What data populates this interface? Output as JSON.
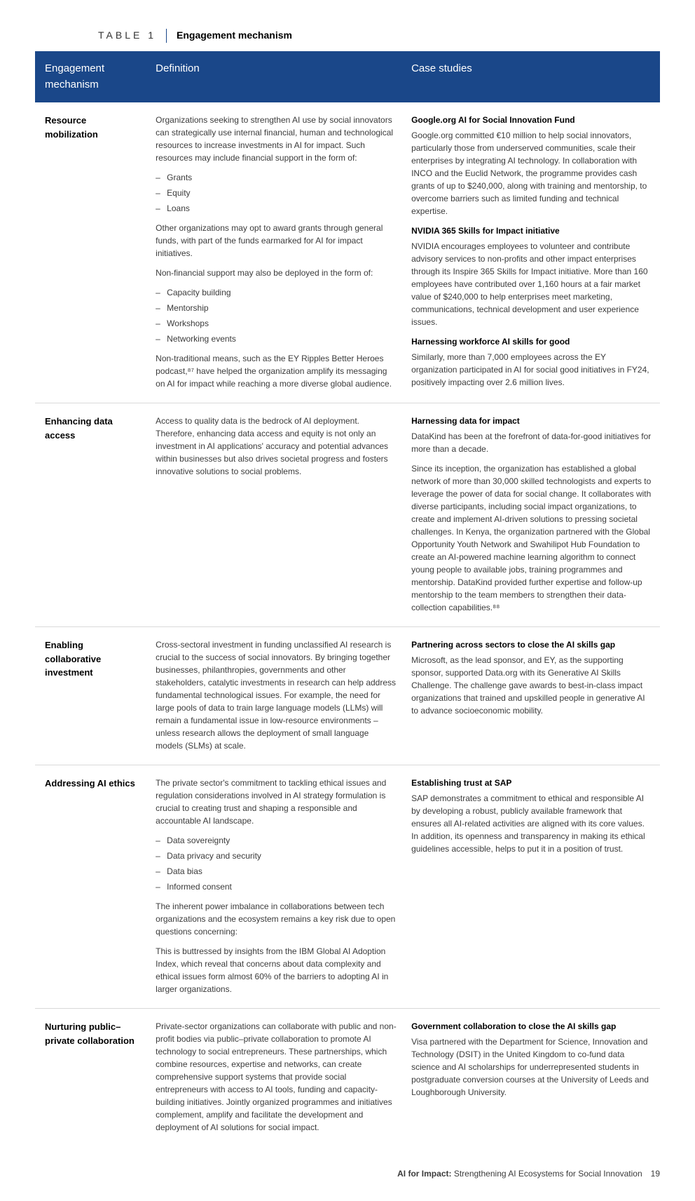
{
  "caption": {
    "num": "TABLE 1",
    "title": "Engagement mechanism"
  },
  "headers": {
    "c1": "Engagement mechanism",
    "c2": "Definition",
    "c3": "Case studies"
  },
  "rows": [
    {
      "mech": "Resource mobilization",
      "def_p1": "Organizations seeking to strengthen AI use by social innovators can strategically use internal financial, human and technological resources to increase investments in AI for impact. Such resources may include financial support in the form of:",
      "def_list1": [
        "Grants",
        "Equity",
        "Loans"
      ],
      "def_p2": "Other organizations may opt to award grants through general funds, with part of the funds earmarked for AI for impact initiatives.",
      "def_p3": "Non-financial support may also be deployed in the form of:",
      "def_list2": [
        "Capacity building",
        "Mentorship",
        "Workshops",
        "Networking events"
      ],
      "def_p4": "Non-traditional means, such as the EY Ripples Better Heroes podcast,⁸⁷ have helped the organization amplify its messaging on AI for impact while reaching a more diverse global audience.",
      "cs": [
        {
          "title": "Google.org AI for Social Innovation Fund",
          "body": "Google.org committed €10 million to help social innovators, particularly those from underserved communities, scale their enterprises by integrating AI technology. In collaboration with INCO and the Euclid Network, the programme provides cash grants of up to $240,000, along with training and mentorship, to overcome barriers such as limited funding and technical expertise."
        },
        {
          "title": "NVIDIA 365 Skills for Impact initiative",
          "body": "NVIDIA encourages employees to volunteer and contribute advisory services to non-profits and other impact enterprises through its Inspire 365 Skills for Impact initiative. More than 160 employees have contributed over 1,160 hours at a fair market value of $240,000 to help enterprises meet marketing, communications, technical development and user experience issues."
        },
        {
          "title": "Harnessing workforce AI skills for good",
          "body": "Similarly, more than 7,000 employees across the EY organization participated in AI for social good initiatives in FY24, positively impacting over 2.6 million lives."
        }
      ]
    },
    {
      "mech": "Enhancing data access",
      "def_p1": "Access to quality data is the bedrock of AI deployment. Therefore, enhancing data access and equity is not only an investment in AI applications' accuracy and potential advances within businesses but also drives societal progress and fosters innovative solutions to social problems.",
      "cs": [
        {
          "title": "Harnessing data for impact",
          "body": "DataKind has been at the forefront of data-for-good initiatives for more than a decade."
        },
        {
          "title": "",
          "body": "Since its inception, the organization has established a global network of more than 30,000 skilled technologists and experts to leverage the power of data for social change. It collaborates with diverse participants, including social impact organizations, to create and implement AI-driven solutions to pressing societal challenges. In Kenya, the organization partnered with the Global Opportunity Youth Network and Swahilipot Hub Foundation to create an AI-powered machine learning algorithm to connect young people to available jobs, training programmes and mentorship. DataKind provided further expertise and follow-up mentorship to the team members to strengthen their data-collection capabilities.⁸⁸"
        }
      ]
    },
    {
      "mech": "Enabling collaborative investment",
      "def_p1": "Cross-sectoral investment in funding unclassified AI research is crucial to the success of social innovators. By bringing together businesses, philanthropies, governments and other stakeholders, catalytic investments in research can help address fundamental technological issues. For example, the need for large pools of data to train large language models (LLMs) will remain a fundamental issue in low-resource environments – unless research allows the deployment of small language models (SLMs) at scale.",
      "cs": [
        {
          "title": "Partnering across sectors to close the AI skills gap",
          "body": "Microsoft, as the lead sponsor, and EY, as the supporting sponsor, supported Data.org with its Generative AI Skills Challenge. The challenge gave awards to best-in-class impact organizations that trained and upskilled people in generative AI to advance socioeconomic mobility."
        }
      ]
    },
    {
      "mech": "Addressing AI ethics",
      "def_p1": "The private sector's commitment to tackling ethical issues and regulation considerations involved in AI strategy formulation is crucial to creating trust and shaping a responsible and accountable AI landscape.",
      "def_p2": "The inherent power imbalance in collaborations between tech organizations and the ecosystem remains a key risk due to open questions concerning:",
      "def_list1": [
        "Data sovereignty",
        "Data privacy and security",
        "Data bias",
        "Informed consent"
      ],
      "def_p3": "This is buttressed by insights from the IBM Global AI Adoption Index, which reveal that concerns about data complexity and ethical issues form almost 60% of the barriers to adopting AI in larger organizations.",
      "cs": [
        {
          "title": "Establishing trust at SAP",
          "body": "SAP demonstrates a commitment to ethical and responsible AI by developing a robust, publicly available framework that ensures all AI-related activities are aligned with its core values. In addition, its openness and transparency in making its ethical guidelines accessible, helps to put it in a position of trust."
        }
      ]
    },
    {
      "mech": "Nurturing public–private collaboration",
      "def_p1": "Private-sector organizations can collaborate with public and non-profit bodies via public–private collaboration to promote AI technology to social entrepreneurs. These partnerships, which combine resources, expertise and networks, can create comprehensive support systems that provide social entrepreneurs with access to AI tools, funding and capacity-building initiatives. Jointly organized programmes and initiatives complement, amplify and facilitate the development and deployment of AI solutions for social impact.",
      "cs": [
        {
          "title": "Government collaboration to close the AI skills gap",
          "body": "Visa partnered with the Department for Science, Innovation and Technology (DSIT) in the United Kingdom to co-fund data science and AI scholarships for underrepresented students in postgraduate conversion courses at the University of Leeds and Loughborough University."
        }
      ]
    }
  ],
  "footer": {
    "strong": "AI for Impact:",
    "rest": " Strengthening AI Ecosystems for Social Innovation",
    "page": "19"
  },
  "colors": {
    "header_bg": "#1a4789",
    "header_fg": "#ffffff",
    "text": "#3b3b3b",
    "border": "#d9d9d9"
  }
}
